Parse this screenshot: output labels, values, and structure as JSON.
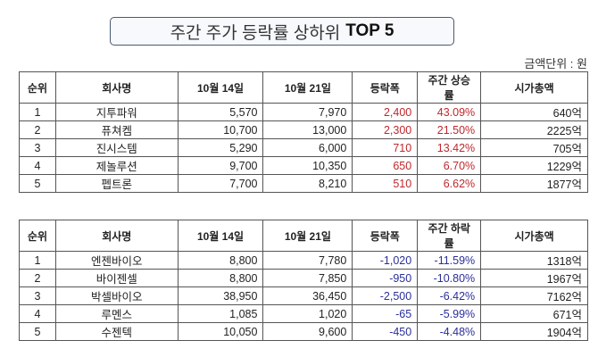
{
  "title": {
    "main": "주간 주가 등락률 상하위",
    "highlight": "TOP 5"
  },
  "unit_label": "금액단위 : 원",
  "gainers": {
    "headers": [
      "순위",
      "회사명",
      "10월 14일",
      "10월 21일",
      "등락폭",
      "주간 상승률",
      "시가총액"
    ],
    "rows": [
      [
        "1",
        "지투파워",
        "5,570",
        "7,970",
        "2,400",
        "43.09%",
        "640억"
      ],
      [
        "2",
        "퓨쳐켐",
        "10,700",
        "13,000",
        "2,300",
        "21.50%",
        "2225억"
      ],
      [
        "3",
        "진시스템",
        "5,290",
        "6,000",
        "710",
        "13.42%",
        "705억"
      ],
      [
        "4",
        "제놀루션",
        "9,700",
        "10,350",
        "650",
        "6.70%",
        "1229억"
      ],
      [
        "5",
        "펩트론",
        "7,700",
        "8,210",
        "510",
        "6.62%",
        "1877억"
      ]
    ]
  },
  "losers": {
    "headers": [
      "순위",
      "회사명",
      "10월 14일",
      "10월 21일",
      "등락폭",
      "주간 하락률",
      "시가총액"
    ],
    "rows": [
      [
        "1",
        "엔젠바이오",
        "8,800",
        "7,780",
        "-1,020",
        "-11.59%",
        "1318억"
      ],
      [
        "2",
        "바이젠셀",
        "8,800",
        "7,850",
        "-950",
        "-10.80%",
        "1967억"
      ],
      [
        "3",
        "박셀바이오",
        "38,950",
        "36,450",
        "-2,500",
        "-6.42%",
        "7162억"
      ],
      [
        "4",
        "루멘스",
        "1,085",
        "1,020",
        "-65",
        "-5.99%",
        "671억"
      ],
      [
        "5",
        "수젠텍",
        "10,050",
        "9,600",
        "-450",
        "-4.48%",
        "1904억"
      ]
    ]
  },
  "colors": {
    "up": "#c0272d",
    "down": "#2a2f9a"
  }
}
